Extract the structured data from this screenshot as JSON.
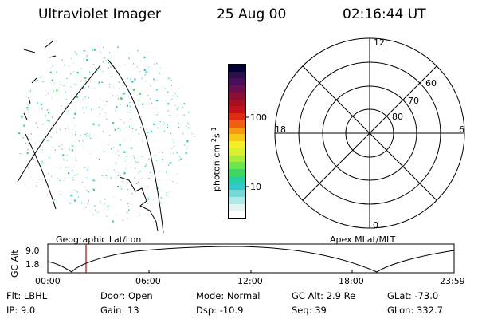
{
  "header": {
    "instrument": "Ultraviolet Imager",
    "date": "25 Aug 00",
    "time": "02:16:44 UT"
  },
  "left_panel": {
    "caption": "Geographic Lat/Lon"
  },
  "right_panel": {
    "caption": "Apex MLat/MLT",
    "mlt_labels": {
      "top": "12",
      "left": "18",
      "right": "6",
      "bottom": "0"
    },
    "lat_labels": [
      "60",
      "70",
      "80"
    ]
  },
  "colorbar": {
    "unit_label": "photon cm",
    "unit_sup1": "-2",
    "unit_mid": "s",
    "unit_sup2": "-1",
    "ticks": [
      "100",
      "10"
    ],
    "colors": [
      "#000033",
      "#2a0f4a",
      "#4a0f5a",
      "#6a0f50",
      "#8a0f35",
      "#aa0f20",
      "#c4101a",
      "#dd2a10",
      "#ee6010",
      "#f59a10",
      "#f8c818",
      "#f4ee25",
      "#d8f030",
      "#a8ec3a",
      "#6ee44a",
      "#3ed860",
      "#28d0a0",
      "#30c8c8",
      "#78d8d8",
      "#b0e8e8",
      "#e0f4f4",
      "#ffffff"
    ]
  },
  "altitude_strip": {
    "ylabel": "GC Alt",
    "yticks": [
      "9.0",
      "1.8"
    ],
    "time_ticks": [
      "00:00",
      "06:00",
      "12:00",
      "18:00",
      "23:59"
    ],
    "marker_color": "#cc0000"
  },
  "status": {
    "row1": [
      {
        "label": "Flt:",
        "value": "LBHL"
      },
      {
        "label": "Door:",
        "value": "Open"
      },
      {
        "label": "Mode:",
        "value": "Normal"
      },
      {
        "label": "GC Alt:",
        "value": "2.9 Re"
      },
      {
        "label": "GLat:",
        "value": "-73.0"
      }
    ],
    "row2": [
      {
        "label": "IP:",
        "value": "9.0"
      },
      {
        "label": "Gain:",
        "value": "13"
      },
      {
        "label": "Dsp:",
        "value": "-10.9"
      },
      {
        "label": "Seq:",
        "value": "39"
      },
      {
        "label": "GLon:",
        "value": "332.7"
      }
    ]
  }
}
